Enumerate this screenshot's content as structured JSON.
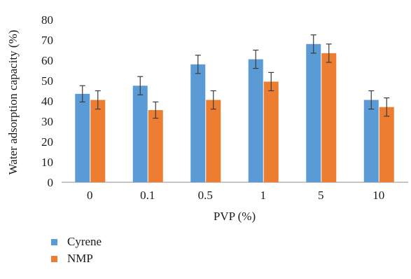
{
  "chart_data": {
    "type": "bar",
    "title": "",
    "xlabel": "PVP (%)",
    "ylabel": "Water adsorption capacity (%)",
    "ylim": [
      0,
      80
    ],
    "yticks": [
      0,
      10,
      20,
      30,
      40,
      50,
      60,
      70,
      80
    ],
    "categories": [
      "0",
      "0.1",
      "0.5",
      "1",
      "5",
      "10"
    ],
    "series": [
      {
        "name": "Cyrene",
        "color": "#5b9bd5",
        "values": [
          43.5,
          47.5,
          58,
          60.5,
          68,
          40.5
        ],
        "errors": [
          4,
          4.5,
          4.5,
          4.5,
          4.5,
          4.5
        ]
      },
      {
        "name": "NMP",
        "color": "#ed7d31",
        "values": [
          40.5,
          35.5,
          40.5,
          49.5,
          63.5,
          37
        ],
        "errors": [
          4.5,
          4,
          4.5,
          4.5,
          4.5,
          4.5
        ]
      }
    ],
    "grid": false,
    "legend_position": "bottom-left",
    "error_bars": true
  }
}
